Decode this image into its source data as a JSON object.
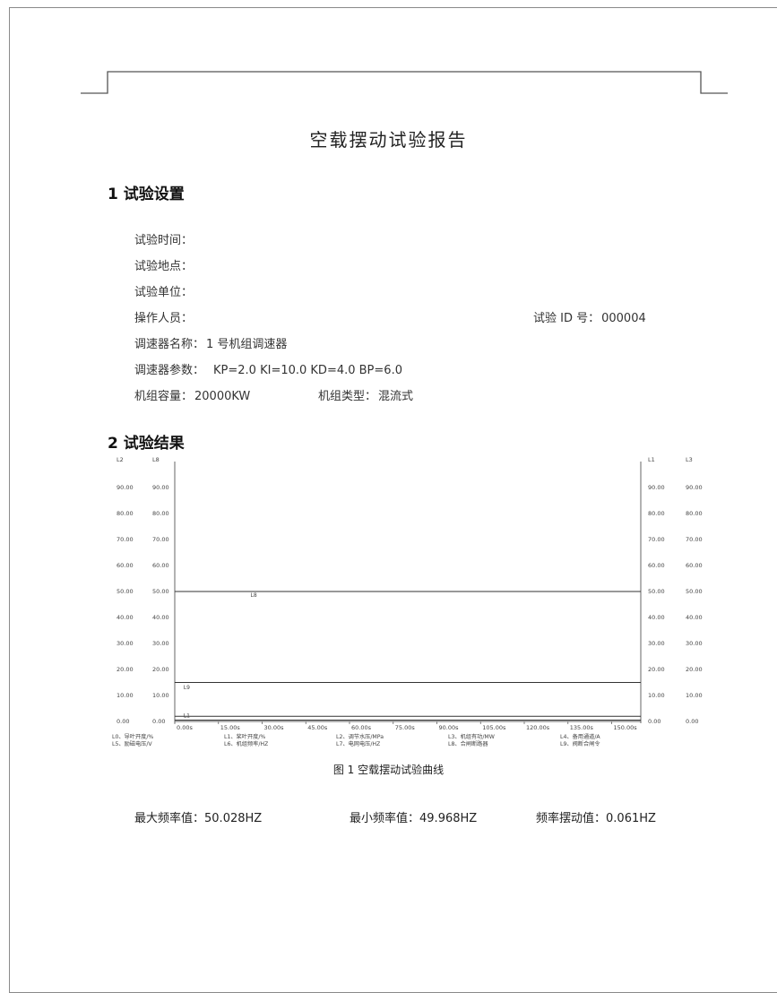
{
  "report": {
    "title": "空载摆动试验报告"
  },
  "section1": {
    "heading": "1 试验设置",
    "fields": {
      "time_label": "试验时间：",
      "location_label": "试验地点：",
      "unit_label": "试验单位：",
      "operator_label": "操作人员：",
      "test_id_label": "试验 ID 号：",
      "test_id_value": "000004",
      "governor_name_label": "调速器名称：",
      "governor_name_value": "1 号机组调速器",
      "governor_params_label": "调速器参数：",
      "governor_params_value": "KP=2.0 KI=10.0 KD=4.0 BP=6.0",
      "capacity_label": "机组容量：",
      "capacity_value": "20000KW",
      "unit_type_label": "机组类型：",
      "unit_type_value": "混流式"
    }
  },
  "section2": {
    "heading": "2 试验结果"
  },
  "chart_data": {
    "type": "line",
    "axis_headers": {
      "left_outer": "L2",
      "left_inner": "L8",
      "right_inner": "L1",
      "right_outer": "L3"
    },
    "yticks": [
      "0.00",
      "10.00",
      "20.00",
      "30.00",
      "40.00",
      "50.00",
      "60.00",
      "70.00",
      "80.00",
      "90.00"
    ],
    "ylim": [
      0,
      100
    ],
    "xticks": [
      "0.00s",
      "15.00s",
      "30.00s",
      "45.00s",
      "60.00s",
      "75.00s",
      "90.00s",
      "105.00s",
      "120.00s",
      "135.00s",
      "150.00s"
    ],
    "xlim": [
      0,
      160
    ],
    "series": [
      {
        "name": "L8",
        "x": [
          0,
          160
        ],
        "y": [
          50.0,
          50.0
        ]
      },
      {
        "name": "L9",
        "x": [
          0,
          160
        ],
        "y": [
          15.0,
          15.0
        ]
      },
      {
        "name": "L1",
        "x": [
          0,
          160
        ],
        "y": [
          2.0,
          2.0
        ]
      },
      {
        "name": "L7",
        "x": [
          0,
          160
        ],
        "y": [
          0.5,
          0.5
        ]
      }
    ],
    "trace_labels": [
      {
        "text": "L8",
        "x": 26,
        "y": 48
      },
      {
        "text": "L9",
        "x": 3,
        "y": 12.5
      },
      {
        "text": "L1",
        "x": 3,
        "y": 1.5
      }
    ],
    "legend": [
      "L0、导叶开度/%",
      "L1、桨叶开度/%",
      "L2、调节水压/MPa",
      "L3、机组有功/MW",
      "L4、备用通道/A",
      "L5、励磁电压/V",
      "L6、机组频率/HZ",
      "L7、电网电压/HZ",
      "L8、合闸断路器",
      "L9、阀断合闸令"
    ]
  },
  "figure_caption": "图 1 空载摆动试验曲线",
  "stats": {
    "max_label": "最大频率值：",
    "max_value": "50.028HZ",
    "min_label": "最小频率值：",
    "min_value": "49.968HZ",
    "swing_label": "频率摆动值：",
    "swing_value": "0.061HZ"
  }
}
